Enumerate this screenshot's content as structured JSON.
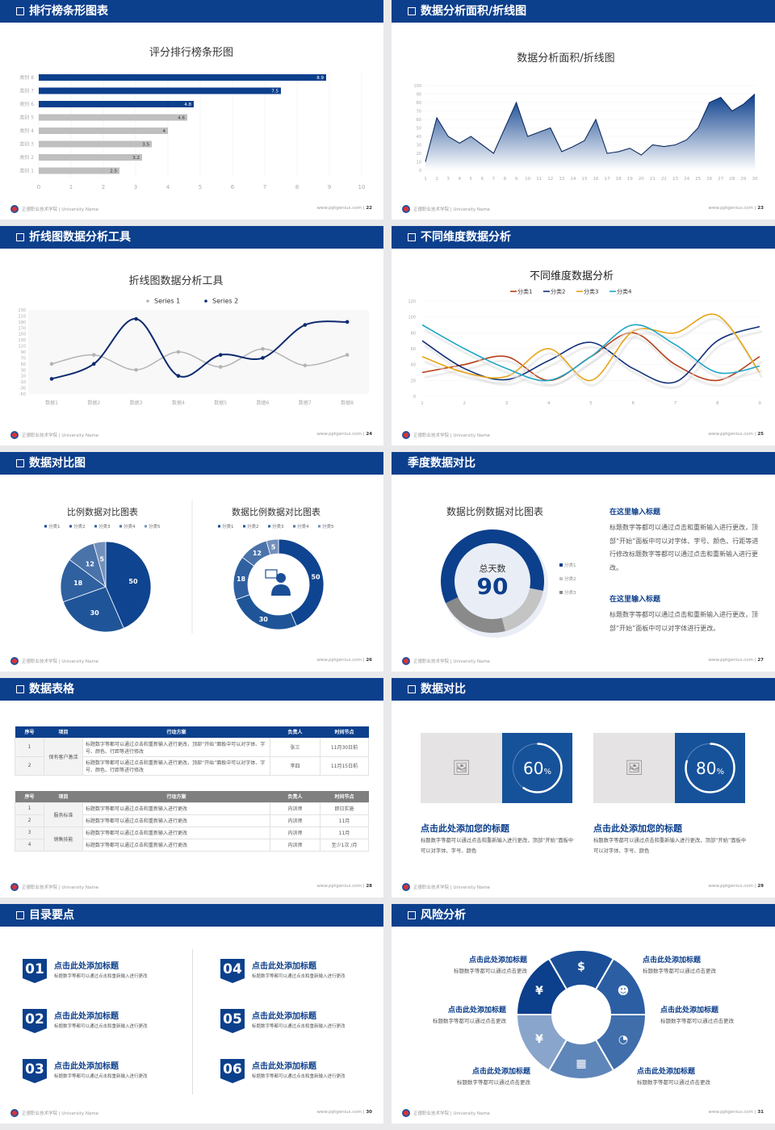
{
  "footer": {
    "org": "正德职业技术学院 | University Name",
    "url": "www.pptgenius.com"
  },
  "slides": [
    {
      "header": "排行榜条形图表",
      "page": "22",
      "checkbox": true
    },
    {
      "header": "数据分析面积/折线图",
      "page": "23",
      "checkbox": true
    },
    {
      "header": "折线图数据分析工具",
      "page": "24",
      "checkbox": true
    },
    {
      "header": "不同维度数据分析",
      "page": "25",
      "checkbox": true
    },
    {
      "header": "数据对比图",
      "page": "26",
      "checkbox": true
    },
    {
      "header": "季度数据对比",
      "page": "27",
      "checkbox": false
    },
    {
      "header": "数据表格",
      "page": "28",
      "checkbox": true
    },
    {
      "header": "数据对比",
      "page": "29",
      "checkbox": true
    },
    {
      "header": "目录要点",
      "page": "30",
      "checkbox": true
    },
    {
      "header": "风险分析",
      "page": "31",
      "checkbox": true
    }
  ],
  "colors": {
    "brand": "#0c3f8c",
    "gray_bar": "#bfbfbf"
  },
  "chart_data": [
    {
      "type": "bar",
      "orientation": "horizontal",
      "title": "评分排行榜条形图",
      "categories": [
        "类别 1",
        "类别 2",
        "类别 3",
        "类别 4",
        "类别 5",
        "类别 6",
        "类别 7",
        "类别 8"
      ],
      "values": [
        2.5,
        3.2,
        3.5,
        4,
        4.6,
        4.8,
        7.5,
        8.9
      ],
      "highlight": [
        false,
        false,
        false,
        false,
        false,
        true,
        true,
        true
      ],
      "xlim": [
        0,
        10
      ],
      "xticks": [
        "0",
        "1",
        "2",
        "3",
        "4",
        "5",
        "6",
        "7",
        "8",
        "9",
        "10"
      ],
      "grid": true
    },
    {
      "type": "area",
      "title": "数据分析面积/折线图",
      "x": [
        "1",
        "2",
        "3",
        "4",
        "5",
        "6",
        "7",
        "8",
        "9",
        "10",
        "11",
        "12",
        "13",
        "14",
        "15",
        "16",
        "17",
        "18",
        "19",
        "20",
        "21",
        "22",
        "23",
        "24",
        "25",
        "26",
        "27",
        "28",
        "29",
        "30"
      ],
      "values": [
        10,
        62,
        40,
        32,
        40,
        30,
        20,
        50,
        80,
        40,
        45,
        50,
        22,
        28,
        35,
        60,
        20,
        22,
        26,
        18,
        30,
        28,
        30,
        36,
        50,
        80,
        86,
        70,
        78,
        90
      ],
      "ylim": [
        0,
        100
      ],
      "yticks": [
        "0",
        "10",
        "20",
        "30",
        "40",
        "50",
        "60",
        "70",
        "80",
        "90",
        "100"
      ]
    },
    {
      "type": "line",
      "smooth": true,
      "title": "折线图数据分析工具",
      "categories": [
        "数据1",
        "数据2",
        "数据3",
        "数据4",
        "数据5",
        "数据6",
        "数据7",
        "数据8"
      ],
      "series": [
        {
          "name": "Series 1",
          "values": [
            50,
            80,
            30,
            90,
            40,
            100,
            45,
            80
          ],
          "color": "#b4b4b4"
        },
        {
          "name": "Series 2",
          "values": [
            0,
            50,
            200,
            10,
            80,
            70,
            180,
            190
          ],
          "color": "#0d2b6e"
        }
      ],
      "ylim": [
        -50,
        230
      ],
      "yticks": [
        "-50",
        "-30",
        "-10",
        "10",
        "30",
        "50",
        "70",
        "90",
        "110",
        "130",
        "150",
        "170",
        "190",
        "210",
        "230"
      ],
      "legend": "top"
    },
    {
      "type": "line",
      "smooth": true,
      "title": "不同维度数据分析",
      "x": [
        "1",
        "2",
        "3",
        "4",
        "5",
        "6",
        "7",
        "8",
        "9"
      ],
      "series": [
        {
          "name": "分类1",
          "values": [
            30,
            40,
            50,
            20,
            50,
            80,
            40,
            20,
            50
          ],
          "color": "#b8401a"
        },
        {
          "name": "分类2",
          "values": [
            70,
            35,
            21,
            45,
            68,
            35,
            18,
            70,
            88
          ],
          "color": "#13307a"
        },
        {
          "name": "分类3",
          "values": [
            50,
            30,
            25,
            60,
            20,
            82,
            80,
            102,
            30
          ],
          "color": "#e8a317"
        },
        {
          "name": "分类4",
          "values": [
            90,
            60,
            35,
            20,
            50,
            90,
            65,
            30,
            38
          ],
          "color": "#1ea5c8"
        }
      ],
      "ylim": [
        0,
        120
      ],
      "yticks": [
        "0",
        "20",
        "40",
        "60",
        "80",
        "100",
        "120"
      ],
      "legend": "top"
    },
    {
      "type": "pie",
      "title": "比例数据对比图表",
      "categories": [
        "分类1",
        "分类2",
        "分类3",
        "分类4",
        "分类5"
      ],
      "values": [
        50,
        30,
        18,
        12,
        5
      ],
      "labels": [
        "50",
        "30",
        "18",
        "12",
        "5"
      ],
      "colors": [
        "#0f4490",
        "#1f5598",
        "#2f60a0",
        "#4a73aa",
        "#7390bc"
      ],
      "legend": "top"
    },
    {
      "type": "pie",
      "donut": true,
      "title": "数据比例数据对比图表",
      "categories": [
        "分类1",
        "分类2",
        "分类3",
        "分类4",
        "分类5"
      ],
      "values": [
        50,
        30,
        18,
        12,
        5
      ],
      "labels": [
        "50",
        "30",
        "18",
        "12",
        "5"
      ],
      "colors": [
        "#0f4490",
        "#1f5598",
        "#2f60a0",
        "#4a73aa",
        "#7390bc"
      ],
      "legend": "top",
      "center_icon": "person-speech-icon"
    },
    {
      "type": "pie",
      "donut": true,
      "title": "数据比例数据对比图表",
      "categories": [
        "分类1",
        "分类2",
        "分类3"
      ],
      "values": [
        60,
        18,
        22
      ],
      "colors": [
        "#0c3f8c",
        "#c4c4c4",
        "#8a8a8a"
      ],
      "legend": "right",
      "center_label": "总天数",
      "center_value": "90"
    }
  ],
  "season": {
    "blocks": [
      {
        "title": "在这里输入标题",
        "text": "标题数字等都可以通过点击和重新输入进行更改，顶部“开始”面板中可以对字体、字号、颜色、行距等进行修改标题数字等都可以通过点击和重新输入进行更改。"
      },
      {
        "title": "在这里输入标题",
        "text": "标题数字等都可以通过点击和重新输入进行更改，顶部“开始”面板中可以对字体进行更改。"
      }
    ]
  },
  "tables": {
    "headers": [
      "序号",
      "项目",
      "行动方案",
      "负责人",
      "时间节点"
    ],
    "t1": {
      "groups": [
        {
          "item": "保有客户激活",
          "rows": [
            {
              "no": "1",
              "plan": "标题数字等都可以通过点击和重新输入进行更改，顶部“开始”面板中可以对字体、字号、颜色、行距等进行修改",
              "owner": "张三",
              "time": "11月30日前"
            },
            {
              "no": "2",
              "plan": "标题数字等都可以通过点击和重新输入进行更改，顶部“开始”面板中可以对字体、字号、颜色、行距等进行修改",
              "owner": "李四",
              "time": "11月15日前"
            }
          ]
        }
      ]
    },
    "t2": {
      "groups": [
        {
          "item": "服务标准",
          "rows": [
            {
              "no": "1",
              "plan": "标题数字等都可以通过点击和重新输入进行更改",
              "owner": "内训师",
              "time": "即日实施"
            },
            {
              "no": "2",
              "plan": "标题数字等都可以通过点击和重新输入进行更改",
              "owner": "内训师",
              "time": "11月"
            }
          ]
        },
        {
          "item": "销售技能",
          "rows": [
            {
              "no": "3",
              "plan": "标题数字等都可以通过点击和重新输入进行更改",
              "owner": "内训师",
              "time": "11月"
            },
            {
              "no": "4",
              "plan": "标题数字等都可以通过点击和重新输入进行更改",
              "owner": "内训师",
              "time": "至少1次 /月"
            }
          ]
        }
      ]
    }
  },
  "compare": {
    "cards": [
      {
        "percent": 60,
        "value": "60",
        "unit": "%",
        "title": "点击此处添加您的标题",
        "text": "标题数字等都可以通过点击和重新输入进行更改，顶部“开始”面板中可以对字体、字号、颜色",
        "image_icon": "image-placeholder-icon"
      },
      {
        "percent": 80,
        "value": "80",
        "unit": "%",
        "title": "点击此处添加您的标题",
        "text": "标题数字等都可以通过点击和重新输入进行更改，顶部“开始”面板中可以对字体、字号、颜色",
        "image_icon": "image-placeholder-icon"
      }
    ]
  },
  "agenda": {
    "items": [
      {
        "num": "01",
        "title": "点击此处添加标题",
        "text": "标题数字等都可以通过点击和重新输入进行更改"
      },
      {
        "num": "02",
        "title": "点击此处添加标题",
        "text": "标题数字等都可以通过点击和重新输入进行更改"
      },
      {
        "num": "03",
        "title": "点击此处添加标题",
        "text": "标题数字等都可以通过点击和重新输入进行更改"
      },
      {
        "num": "04",
        "title": "点击此处添加标题",
        "text": "标题数字等都可以通过点击和重新输入进行更改"
      },
      {
        "num": "05",
        "title": "点击此处添加标题",
        "text": "标题数字等都可以通过点击和重新输入进行更改"
      },
      {
        "num": "06",
        "title": "点击此处添加标题",
        "text": "标题数字等都可以通过点击和重新输入进行更改"
      }
    ]
  },
  "risk": {
    "items": [
      {
        "title": "点击此处添加标题",
        "text": "标题数字等都可以通过点击更改",
        "icon": "money-bag-icon",
        "glyph": "¥",
        "color": "#0c3f8c"
      },
      {
        "title": "点击此处添加标题",
        "text": "标题数字等都可以通过点击更改",
        "icon": "coins-icon",
        "glyph": "$",
        "color": "#1a4f98"
      },
      {
        "title": "点击此处添加标题",
        "text": "标题数字等都可以通过点击更改",
        "icon": "users-icon",
        "glyph": "☻",
        "color": "#2b5ea3"
      },
      {
        "title": "点击此处添加标题",
        "text": "标题数字等都可以通过点击更改",
        "icon": "pie-chart-icon",
        "glyph": "◔",
        "color": "#3f6eab"
      },
      {
        "title": "点击此处添加标题",
        "text": "标题数字等都可以通过点击更改",
        "icon": "building-icon",
        "glyph": "▦",
        "color": "#5f86b9"
      },
      {
        "title": "点击此处添加标题",
        "text": "标题数字等都可以通过点击更改",
        "icon": "hand-money-icon",
        "glyph": "¥",
        "color": "#8aa5cb"
      }
    ]
  }
}
